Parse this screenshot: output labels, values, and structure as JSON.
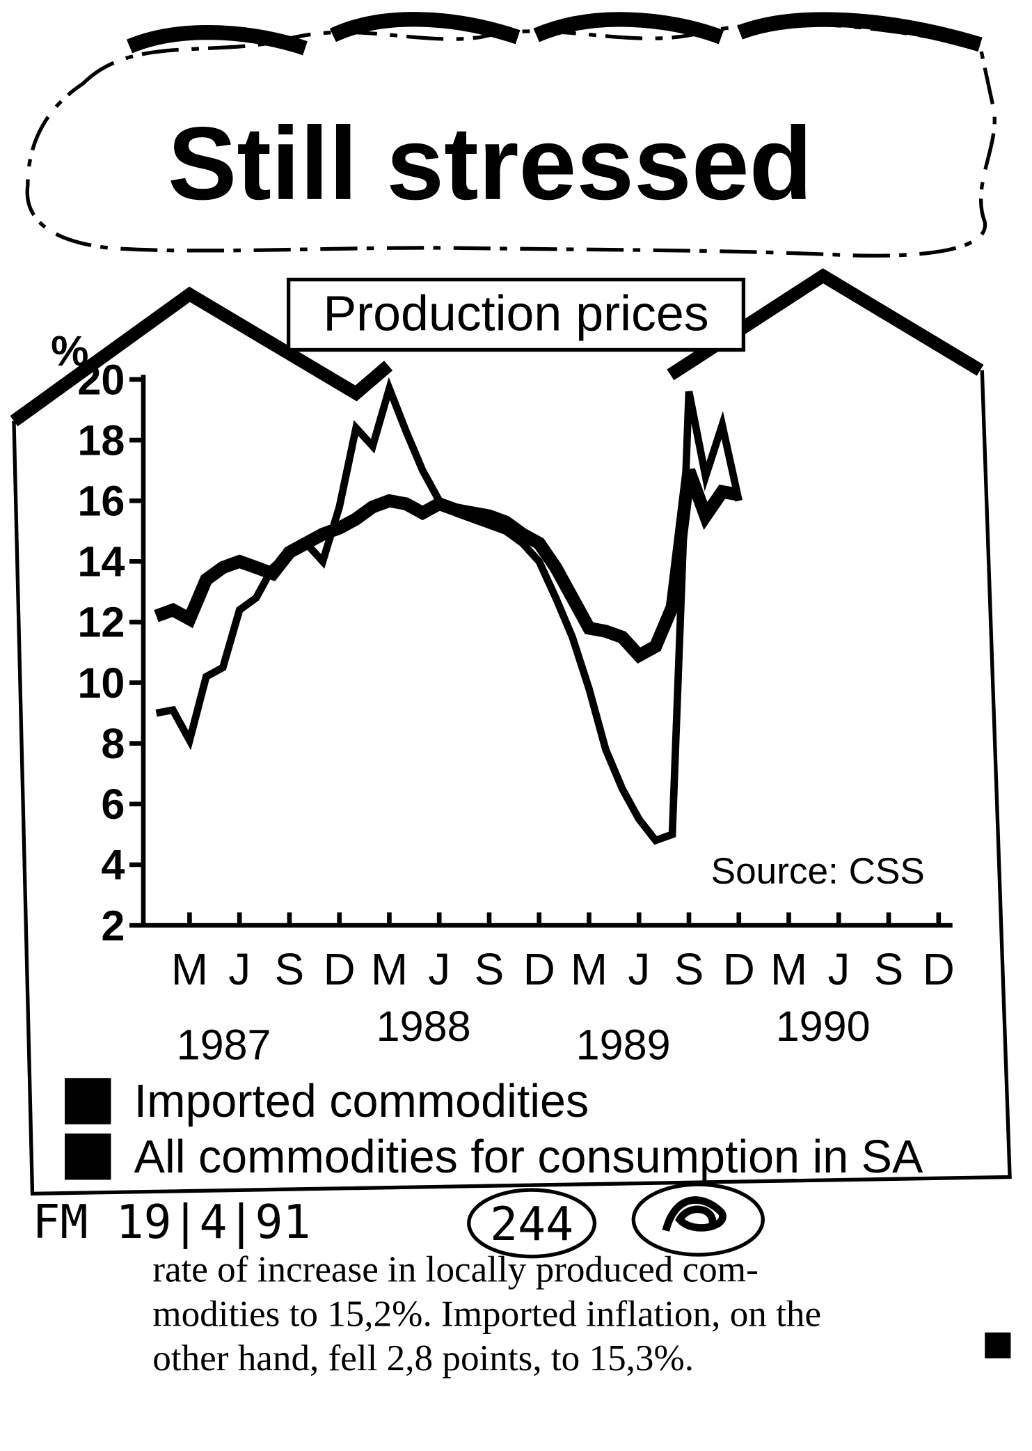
{
  "chart_data": {
    "type": "line",
    "title": "Still stressed",
    "subtitle": "Production prices",
    "y_label": "%",
    "source": "Source: CSS",
    "x": [
      "1987-01",
      "1987-02",
      "1987-03",
      "1987-04",
      "1987-05",
      "1987-06",
      "1987-07",
      "1987-08",
      "1987-09",
      "1987-10",
      "1987-11",
      "1987-12",
      "1988-01",
      "1988-02",
      "1988-03",
      "1988-04",
      "1988-05",
      "1988-06",
      "1988-07",
      "1988-08",
      "1988-09",
      "1988-10",
      "1988-11",
      "1988-12",
      "1989-01",
      "1989-02",
      "1989-03",
      "1989-04",
      "1989-05",
      "1989-06",
      "1989-07",
      "1989-08",
      "1989-09",
      "1989-10",
      "1989-11",
      "1989-12"
    ],
    "series": [
      {
        "name": "Imported commodities",
        "color": "#000000",
        "values": [
          9,
          9.1,
          8.1,
          10.2,
          10.5,
          12.4,
          12.8,
          13.8,
          14.3,
          14.6,
          14,
          15.8,
          18.4,
          17.8,
          19.7,
          18.3,
          17,
          16,
          15.6,
          15.4,
          15.2,
          15,
          14.6,
          14,
          12.8,
          11.5,
          9.8,
          7.8,
          6.5,
          5.5,
          4.8,
          5,
          19.6,
          16.8,
          18.5,
          16
        ]
      },
      {
        "name": "All commodities for consumption in SA",
        "color": "#000000",
        "values": [
          12.2,
          12.4,
          12.1,
          13.4,
          13.8,
          14,
          13.8,
          13.6,
          14.3,
          14.6,
          14.9,
          15.1,
          15.4,
          15.8,
          16,
          15.9,
          15.6,
          15.9,
          15.7,
          15.6,
          15.5,
          15.3,
          14.9,
          14.6,
          13.8,
          12.8,
          11.8,
          11.7,
          11.5,
          10.9,
          11.2,
          12.5,
          17,
          15.5,
          16.3,
          16.2
        ]
      }
    ],
    "xlim": [
      "1987-01",
      "1990-12"
    ],
    "xticks": [
      {
        "value": "1987-03",
        "label": "M"
      },
      {
        "value": "1987-06",
        "label": "J"
      },
      {
        "value": "1987-09",
        "label": "S"
      },
      {
        "value": "1987-12",
        "label": "D"
      },
      {
        "value": "1988-03",
        "label": "M"
      },
      {
        "value": "1988-06",
        "label": "J"
      },
      {
        "value": "1988-09",
        "label": "S"
      },
      {
        "value": "1988-12",
        "label": "D"
      },
      {
        "value": "1989-03",
        "label": "M"
      },
      {
        "value": "1989-06",
        "label": "J"
      },
      {
        "value": "1989-09",
        "label": "S"
      },
      {
        "value": "1989-12",
        "label": "D"
      },
      {
        "value": "1990-03",
        "label": "M"
      },
      {
        "value": "1990-06",
        "label": "J"
      },
      {
        "value": "1990-09",
        "label": "S"
      },
      {
        "value": "1990-12",
        "label": "D"
      }
    ],
    "x_year_labels": [
      "1987",
      "1988",
      "1989",
      "1990"
    ],
    "ylim": [
      2,
      20
    ],
    "yticks": [
      2,
      4,
      6,
      8,
      10,
      12,
      14,
      16,
      18,
      20
    ],
    "grid": false
  },
  "handwritten_note": "FM 19|4|91",
  "page_number": "244",
  "article_text": [
    "rate of increase in locally produced com-",
    "modities to 15,2%. Imported inflation, on the",
    "other hand, fell 2,8 points, to 15,3%."
  ]
}
